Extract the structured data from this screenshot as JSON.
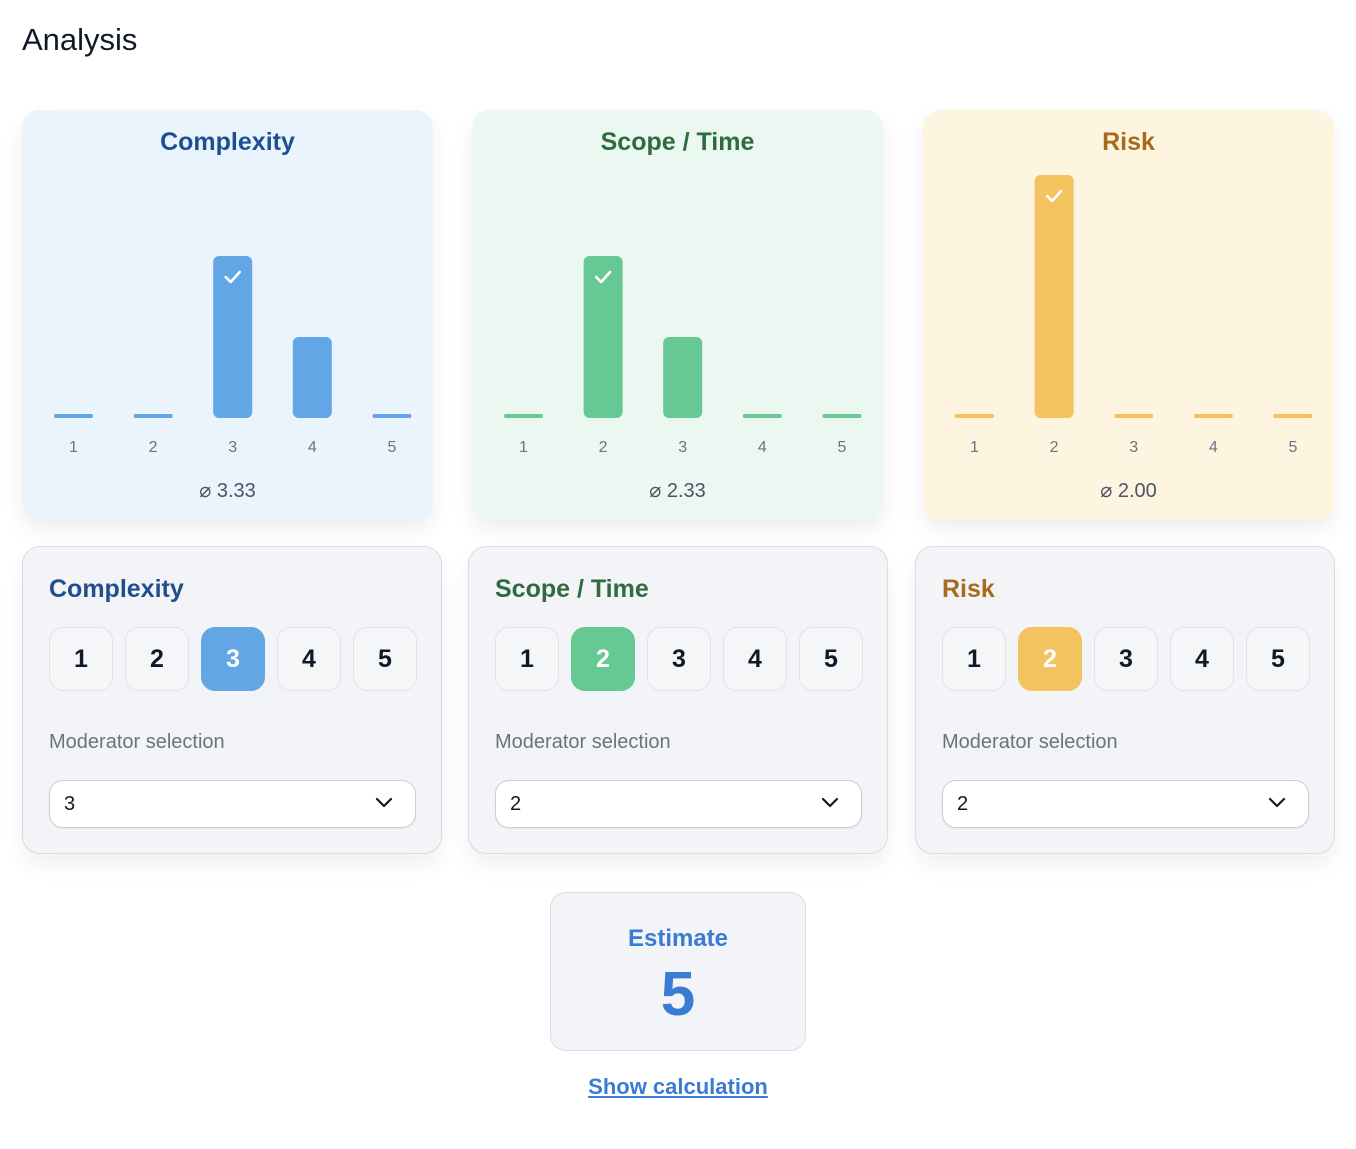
{
  "page": {
    "title": "Analysis"
  },
  "charts": [
    {
      "title": "Complexity",
      "bg": "#e9f4fd",
      "title_color": "#1f4f8f",
      "bar_color": "#63a6e6",
      "x_labels": [
        "1",
        "2",
        "3",
        "4",
        "5"
      ],
      "values": [
        0,
        0,
        2,
        1,
        0
      ],
      "selected": 3,
      "average": "⌀ 3.33"
    },
    {
      "title": "Scope / Time",
      "bg": "#eaf8f1",
      "title_color": "#2f6b3e",
      "bar_color": "#66c892",
      "x_labels": [
        "1",
        "2",
        "3",
        "4",
        "5"
      ],
      "values": [
        0,
        2,
        1,
        0,
        0
      ],
      "selected": 2,
      "average": "⌀ 2.33"
    },
    {
      "title": "Risk",
      "bg": "#fdf5df",
      "title_color": "#a86b1c",
      "bar_color": "#f2c35e",
      "x_labels": [
        "1",
        "2",
        "3",
        "4",
        "5"
      ],
      "values": [
        0,
        3,
        0,
        0,
        0
      ],
      "selected": 2,
      "average": "⌀ 2.00"
    }
  ],
  "panels": [
    {
      "title": "Complexity",
      "title_color": "#1f4f8f",
      "accent": "#63a6e6",
      "options": [
        "1",
        "2",
        "3",
        "4",
        "5"
      ],
      "selected": "3",
      "moderator_label": "Moderator selection",
      "moderator_value": "3"
    },
    {
      "title": "Scope / Time",
      "title_color": "#2f6b3e",
      "accent": "#66c892",
      "options": [
        "1",
        "2",
        "3",
        "4",
        "5"
      ],
      "selected": "2",
      "moderator_label": "Moderator selection",
      "moderator_value": "2"
    },
    {
      "title": "Risk",
      "title_color": "#a86b1c",
      "accent": "#f2c35e",
      "options": [
        "1",
        "2",
        "3",
        "4",
        "5"
      ],
      "selected": "2",
      "moderator_label": "Moderator selection",
      "moderator_value": "2"
    }
  ],
  "estimate": {
    "label": "Estimate",
    "value": "5",
    "color": "#3a7bd5"
  },
  "show_calculation": "Show calculation",
  "icons": {
    "selected_bar": "check-icon",
    "select_arrow": "chevron-down-icon"
  },
  "chart_data": [
    {
      "type": "bar",
      "title": "Complexity",
      "categories": [
        "1",
        "2",
        "3",
        "4",
        "5"
      ],
      "values": [
        0,
        0,
        2,
        1,
        0
      ],
      "xlabel": "",
      "ylabel": ""
    },
    {
      "type": "bar",
      "title": "Scope / Time",
      "categories": [
        "1",
        "2",
        "3",
        "4",
        "5"
      ],
      "values": [
        0,
        2,
        1,
        0,
        0
      ],
      "xlabel": "",
      "ylabel": ""
    },
    {
      "type": "bar",
      "title": "Risk",
      "categories": [
        "1",
        "2",
        "3",
        "4",
        "5"
      ],
      "values": [
        0,
        3,
        0,
        0,
        0
      ],
      "xlabel": "",
      "ylabel": ""
    }
  ]
}
